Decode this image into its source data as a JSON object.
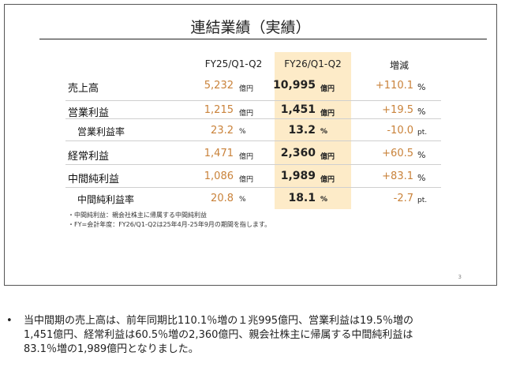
{
  "slide": {
    "title": "連結業績（実績）",
    "columns": {
      "prev": "FY25/Q1-Q2",
      "curr": "FY26/Q1-Q2",
      "change": "増減"
    },
    "rows": [
      {
        "label": "売上高",
        "prev": "5,232",
        "prev_unit": "億円",
        "curr": "10,995",
        "curr_unit": "億円",
        "change": "+110.1",
        "change_unit": "%"
      },
      {
        "label": "営業利益",
        "prev": "1,215",
        "prev_unit": "億円",
        "curr": "1,451",
        "curr_unit": "億円",
        "change": "+19.5",
        "change_unit": "%"
      },
      {
        "label": "営業利益率",
        "prev": "23.2",
        "prev_unit": "%",
        "curr": "13.2",
        "curr_unit": "%",
        "change": "-10.0",
        "change_unit": "pt."
      },
      {
        "label": "経常利益",
        "prev": "1,471",
        "prev_unit": "億円",
        "curr": "2,360",
        "curr_unit": "億円",
        "change": "+60.5",
        "change_unit": "%"
      },
      {
        "label": "中間純利益",
        "prev": "1,086",
        "prev_unit": "億円",
        "curr": "1,989",
        "curr_unit": "億円",
        "change": "+83.1",
        "change_unit": "%"
      },
      {
        "label": "中間純利益率",
        "prev": "20.8",
        "prev_unit": "%",
        "curr": "18.1",
        "curr_unit": "%",
        "change": "-2.7",
        "change_unit": "pt."
      }
    ],
    "footnotes": [
      "・中間純利益：親会社株主に帰属する中間純利益",
      "・FY=会計年度：FY26/Q1-Q2は25年4月-25年9月の期間を指します。"
    ],
    "page_number": "3"
  },
  "summary": {
    "bullet": "•",
    "lines": [
      "当中間期の売上高は、前年同期比110.1％増の１兆995億円、営業利益は19.5％増の",
      "1,451億円、経常利益は60.5％増の2,360億円、親会社株主に帰属する中間純利益は",
      "83.1％増の1,989億円となりました。"
    ]
  }
}
